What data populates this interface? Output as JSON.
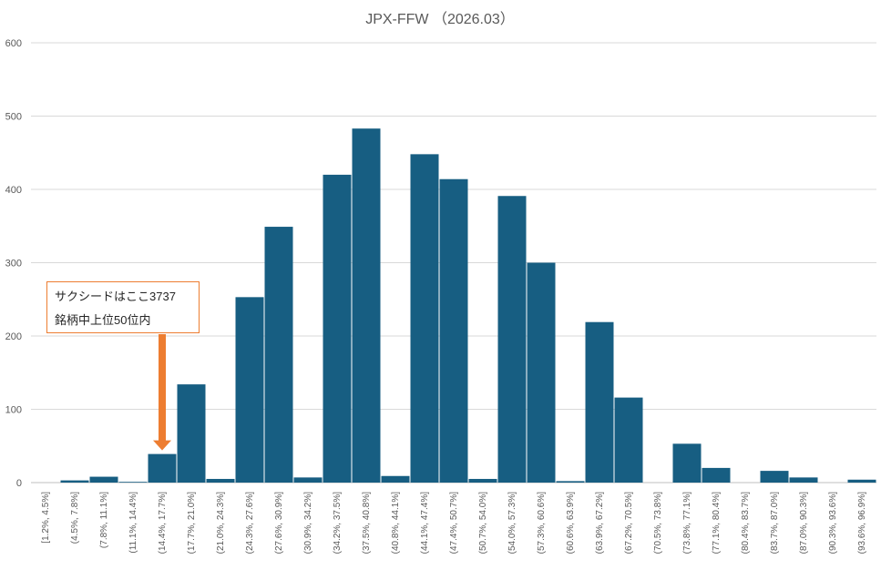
{
  "chart_data": {
    "type": "bar",
    "title": "JPX-FFW （2026.03）",
    "xlabel": "",
    "ylabel": "",
    "ylim": [
      0,
      600
    ],
    "yticks": [
      0,
      100,
      200,
      300,
      400,
      500,
      600
    ],
    "grid": true,
    "legend": "none",
    "categories": [
      "[1.2%, 4.5%]",
      "(4.5%, 7.8%]",
      "(7.8%, 11.1%]",
      "(11.1%, 14.4%]",
      "(14.4%, 17.7%]",
      "(17.7%, 21.0%]",
      "(21.0%, 24.3%]",
      "(24.3%, 27.6%]",
      "(27.6%, 30.9%]",
      "(30.9%, 34.2%]",
      "(34.2%, 37.5%]",
      "(37.5%, 40.8%]",
      "(40.8%, 44.1%]",
      "(44.1%, 47.4%]",
      "(47.4%, 50.7%]",
      "(50.7%, 54.0%]",
      "(54.0%, 57.3%]",
      "(57.3%, 60.6%]",
      "(60.6%, 63.9%]",
      "(63.9%, 67.2%]",
      "(67.2%, 70.5%]",
      "(70.5%, 73.8%]",
      "(73.8%, 77.1%]",
      "(77.1%, 80.4%]",
      "(80.4%, 83.7%]",
      "(83.7%, 87.0%]",
      "(87.0%, 90.3%]",
      "(90.3%, 93.6%]",
      "(93.6%, 96.9%]"
    ],
    "values": [
      0,
      3,
      8,
      1,
      39,
      134,
      5,
      253,
      349,
      7,
      420,
      483,
      9,
      448,
      414,
      5,
      391,
      300,
      2,
      219,
      116,
      0,
      53,
      20,
      0,
      16,
      7,
      0,
      4
    ],
    "bar_color": "#175E82",
    "annotation": {
      "line1": "サクシードはここ3737",
      "line2": "銘柄中上位50位内",
      "color": "#ED7D31",
      "target_category": "(14.4%, 17.7%]"
    }
  }
}
